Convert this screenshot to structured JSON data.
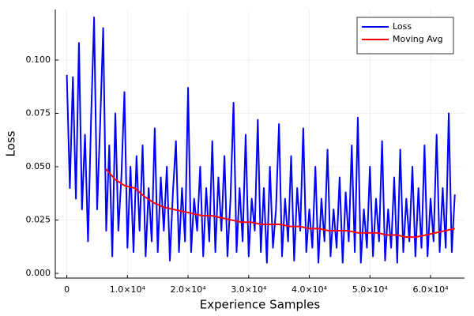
{
  "chart_data": {
    "type": "line",
    "xlabel": "Experience Samples",
    "ylabel": "Loss",
    "xlim": [
      -1900,
      65600
    ],
    "ylim": [
      -0.0022,
      0.1237
    ],
    "xticks": [
      0,
      {
        "value": 10000,
        "label": "1.0×10⁴"
      },
      {
        "value": 20000,
        "label": "2.0×10⁴"
      },
      {
        "value": 30000,
        "label": "3.0×10⁴"
      },
      {
        "value": 40000,
        "label": "4.0×10⁴"
      },
      {
        "value": 50000,
        "label": "5.0×10⁴"
      },
      {
        "value": 60000,
        "label": "6.0×10⁴"
      }
    ],
    "yticks": [
      {
        "value": 0,
        "label": "0.000"
      },
      {
        "value": 0.025,
        "label": "0.025"
      },
      {
        "value": 0.05,
        "label": "0.050"
      },
      {
        "value": 0.075,
        "label": "0.075"
      },
      {
        "value": 0.1,
        "label": "0.100"
      }
    ],
    "grid": true,
    "legend": "top-right",
    "series": [
      {
        "name": "Loss",
        "color": "#0000ff",
        "x": [
          0,
          500,
          1000,
          1500,
          2000,
          2500,
          3000,
          3500,
          4000,
          4500,
          5000,
          5500,
          6000,
          6500,
          7000,
          7500,
          8000,
          8500,
          9000,
          9500,
          10000,
          10500,
          11000,
          11500,
          12000,
          12500,
          13000,
          13500,
          14000,
          14500,
          15000,
          15500,
          16000,
          16500,
          17000,
          17500,
          18000,
          18500,
          19000,
          19500,
          20000,
          20500,
          21000,
          21500,
          22000,
          22500,
          23000,
          23500,
          24000,
          24500,
          25000,
          25500,
          26000,
          26500,
          27000,
          27500,
          28000,
          28500,
          29000,
          29500,
          30000,
          30500,
          31000,
          31500,
          32000,
          32500,
          33000,
          33500,
          34000,
          34500,
          35000,
          35500,
          36000,
          36500,
          37000,
          37500,
          38000,
          38500,
          39000,
          39500,
          40000,
          40500,
          41000,
          41500,
          42000,
          42500,
          43000,
          43500,
          44000,
          44500,
          45000,
          45500,
          46000,
          46500,
          47000,
          47500,
          48000,
          48500,
          49000,
          49500,
          50000,
          50500,
          51000,
          51500,
          52000,
          52500,
          53000,
          53500,
          54000,
          54500,
          55000,
          55500,
          56000,
          56500,
          57000,
          57500,
          58000,
          58500,
          59000,
          59500,
          60000,
          60500,
          61000,
          61500,
          62000,
          62500,
          63000,
          63500,
          64000
        ],
        "values": [
          0.093,
          0.04,
          0.092,
          0.035,
          0.108,
          0.03,
          0.065,
          0.015,
          0.072,
          0.12,
          0.03,
          0.07,
          0.115,
          0.02,
          0.06,
          0.008,
          0.075,
          0.02,
          0.045,
          0.085,
          0.012,
          0.05,
          0.01,
          0.055,
          0.02,
          0.06,
          0.008,
          0.04,
          0.015,
          0.068,
          0.01,
          0.045,
          0.02,
          0.05,
          0.006,
          0.038,
          0.062,
          0.01,
          0.04,
          0.015,
          0.087,
          0.01,
          0.035,
          0.02,
          0.05,
          0.008,
          0.04,
          0.015,
          0.062,
          0.01,
          0.045,
          0.02,
          0.055,
          0.008,
          0.035,
          0.08,
          0.01,
          0.04,
          0.015,
          0.065,
          0.008,
          0.035,
          0.02,
          0.072,
          0.01,
          0.04,
          0.005,
          0.05,
          0.012,
          0.03,
          0.07,
          0.008,
          0.035,
          0.015,
          0.055,
          0.006,
          0.04,
          0.02,
          0.068,
          0.01,
          0.03,
          0.012,
          0.05,
          0.005,
          0.035,
          0.015,
          0.058,
          0.008,
          0.03,
          0.012,
          0.045,
          0.005,
          0.038,
          0.015,
          0.06,
          0.01,
          0.073,
          0.005,
          0.03,
          0.012,
          0.05,
          0.008,
          0.035,
          0.015,
          0.062,
          0.006,
          0.03,
          0.012,
          0.045,
          0.005,
          0.058,
          0.01,
          0.035,
          0.015,
          0.05,
          0.008,
          0.04,
          0.012,
          0.06,
          0.008,
          0.035,
          0.015,
          0.065,
          0.01,
          0.04,
          0.012,
          0.075,
          0.01,
          0.037
        ]
      },
      {
        "name": "Moving Avg",
        "color": "#ff0000",
        "x": [
          6400,
          8000,
          9600,
          11200,
          12800,
          14400,
          16000,
          17600,
          19200,
          20800,
          22400,
          24000,
          25600,
          27200,
          28800,
          30400,
          32000,
          33600,
          35200,
          36800,
          38400,
          40000,
          41600,
          43200,
          44800,
          46400,
          48000,
          49600,
          51200,
          52800,
          54400,
          56000,
          57600,
          59200,
          60800,
          62400,
          64000
        ],
        "values": [
          0.049,
          0.044,
          0.041,
          0.04,
          0.036,
          0.033,
          0.031,
          0.03,
          0.029,
          0.028,
          0.027,
          0.027,
          0.026,
          0.025,
          0.024,
          0.024,
          0.023,
          0.023,
          0.023,
          0.022,
          0.022,
          0.021,
          0.021,
          0.02,
          0.02,
          0.02,
          0.019,
          0.019,
          0.019,
          0.018,
          0.018,
          0.017,
          0.017,
          0.018,
          0.019,
          0.02,
          0.021
        ]
      }
    ]
  }
}
